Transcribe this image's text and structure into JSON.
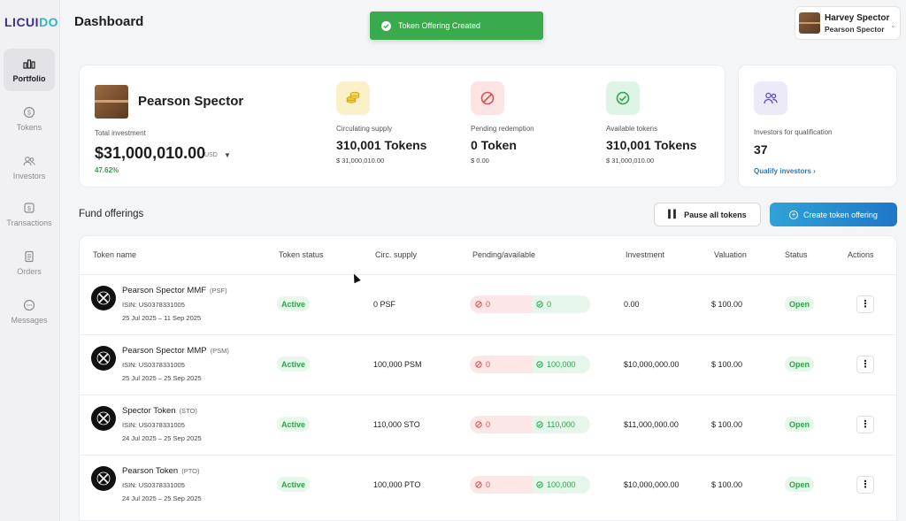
{
  "brand": {
    "logo_text_a": "LICUI",
    "logo_text_b": "DO"
  },
  "sidebar": {
    "items": [
      {
        "label": "Portfolio",
        "icon": "portfolio-icon",
        "active": true
      },
      {
        "label": "Tokens",
        "icon": "tokens-icon",
        "active": false
      },
      {
        "label": "Investors",
        "icon": "investors-icon",
        "active": false
      },
      {
        "label": "Transactions",
        "icon": "transactions-icon",
        "active": false
      },
      {
        "label": "Orders",
        "icon": "orders-icon",
        "active": false
      },
      {
        "label": "Messages",
        "icon": "messages-icon",
        "active": false
      }
    ]
  },
  "header": {
    "title": "Dashboard",
    "toast": "Token Offering Created",
    "user_name": "Harvey Spector",
    "user_org": "Pearson Spector"
  },
  "summary": {
    "company": "Pearson Spector",
    "total_investment_label": "Total investment",
    "total_investment_value": "$31,000,010.00",
    "currency": "USD",
    "change_pct": "47.62%",
    "stats": [
      {
        "label": "Circulating supply",
        "value": "310,001 Tokens",
        "sub": "$ 31,000,010.00",
        "color": "#fbf1c8"
      },
      {
        "label": "Pending redemption",
        "value": "0 Token",
        "sub": "$ 0.00",
        "color": "#fde4e4"
      },
      {
        "label": "Available tokens",
        "value": "310,001 Tokens",
        "sub": "$ 31,000,010.00",
        "color": "#def4e4"
      }
    ],
    "investors": {
      "label": "Investors for qualification",
      "value": "37",
      "link": "Qualify investors"
    }
  },
  "offerings": {
    "title": "Fund offerings",
    "pause_label": "Pause all tokens",
    "create_label": "Create token offering",
    "columns": [
      "Token name",
      "Token status",
      "Circ. supply",
      "Pending/available",
      "Investment",
      "Valuation",
      "Status",
      "Actions"
    ],
    "rows": [
      {
        "name": "Pearson Spector MMF",
        "symbol": "(PSF)",
        "isin": "ISIN: US0378331005",
        "dates": "25 Jul 2025 – 11 Sep 2025",
        "token_status": "Active",
        "circ": "0 PSF",
        "pending": "0",
        "available": "0",
        "investment": "0.00",
        "valuation": "$ 100.00",
        "status": "Open"
      },
      {
        "name": "Pearson Spector MMP",
        "symbol": "(PSM)",
        "isin": "ISIN: US0378331005",
        "dates": "25 Jul 2025 – 25 Sep 2025",
        "token_status": "Active",
        "circ": "100,000 PSM",
        "pending": "0",
        "available": "100,000",
        "investment": "$10,000,000.00",
        "valuation": "$ 100.00",
        "status": "Open"
      },
      {
        "name": "Spector Token",
        "symbol": "(STO)",
        "isin": "ISIN: US0378331005",
        "dates": "24 Jul 2025 – 25 Sep 2025",
        "token_status": "Active",
        "circ": "110,000 STO",
        "pending": "0",
        "available": "110,000",
        "investment": "$11,000,000.00",
        "valuation": "$ 100.00",
        "status": "Open"
      },
      {
        "name": "Pearson Token",
        "symbol": "(PTO)",
        "isin": "ISIN: US0378331005",
        "dates": "24 Jul 2025 – 25 Sep 2025",
        "token_status": "Active",
        "circ": "100,000 PTO",
        "pending": "0",
        "available": "100,000",
        "investment": "$10,000,000.00",
        "valuation": "$ 100.00",
        "status": "Open"
      }
    ]
  }
}
